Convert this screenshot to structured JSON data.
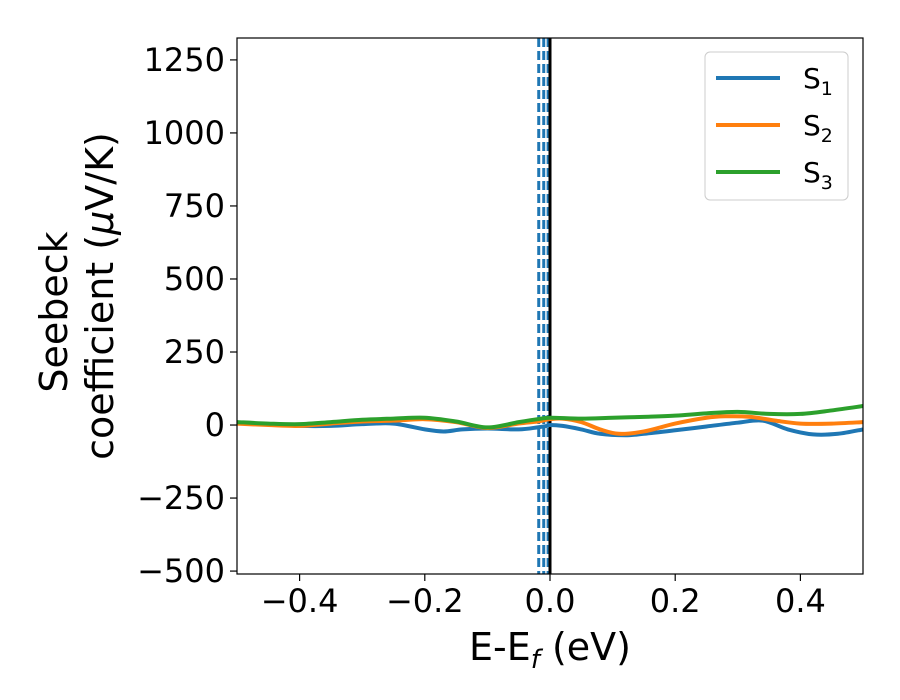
{
  "chart_data": {
    "type": "line",
    "xlabel": {
      "main": "E-E",
      "sub": "f",
      "suffix": " (eV)"
    },
    "ylabel": {
      "line1": "Seebeck",
      "line2": "coefficient  (",
      "mu": "μ",
      "line2_end": "V/K)"
    },
    "xlim": [
      -0.5,
      0.5
    ],
    "ylim": [
      -510,
      1325
    ],
    "x_ticks": [
      -0.4,
      -0.2,
      0.0,
      0.2,
      0.4
    ],
    "x_tick_labels": [
      "−0.4",
      "−0.2",
      "0.0",
      "0.2",
      "0.4"
    ],
    "y_ticks": [
      -500,
      -250,
      0,
      250,
      500,
      750,
      1000,
      1250
    ],
    "y_tick_labels": [
      "−500",
      "−250",
      "0",
      "250",
      "500",
      "750",
      "1000",
      "1250"
    ],
    "grid": false,
    "legend_position": "top-right",
    "legend": [
      {
        "base": "S",
        "sub": "1"
      },
      {
        "base": "S",
        "sub": "2"
      },
      {
        "base": "S",
        "sub": "3"
      }
    ],
    "vertical_lines": [
      {
        "x": -0.018,
        "color": "#1f77b4",
        "style": "dashed"
      },
      {
        "x": -0.01,
        "color": "#1f77b4",
        "style": "dashed"
      },
      {
        "x": -0.003,
        "color": "#1f77b4",
        "style": "dashed"
      },
      {
        "x": 0.0,
        "color": "#000000",
        "style": "solid"
      }
    ],
    "series": [
      {
        "color": "#1f77b4",
        "x": [
          -0.5,
          -0.45,
          -0.4,
          -0.35,
          -0.3,
          -0.25,
          -0.2,
          -0.17,
          -0.14,
          -0.1,
          -0.05,
          -0.02,
          -0.005,
          0.0,
          0.02,
          0.05,
          0.08,
          0.12,
          0.15,
          0.2,
          0.25,
          0.3,
          0.34,
          0.38,
          0.42,
          0.46,
          0.5
        ],
        "y": [
          8,
          3,
          -3,
          -3,
          3,
          5,
          -15,
          -22,
          -15,
          -12,
          -15,
          -8,
          -3,
          0,
          -3,
          -15,
          -30,
          -35,
          -30,
          -18,
          -5,
          8,
          15,
          -15,
          -32,
          -30,
          -15
        ]
      },
      {
        "color": "#ff7f0e",
        "x": [
          -0.5,
          -0.45,
          -0.4,
          -0.35,
          -0.3,
          -0.25,
          -0.2,
          -0.15,
          -0.1,
          -0.05,
          -0.02,
          0.0,
          0.02,
          0.05,
          0.08,
          0.11,
          0.15,
          0.2,
          0.25,
          0.28,
          0.32,
          0.36,
          0.4,
          0.45,
          0.5
        ],
        "y": [
          5,
          0,
          -3,
          5,
          12,
          15,
          20,
          10,
          -10,
          5,
          12,
          20,
          22,
          10,
          -15,
          -30,
          -22,
          5,
          25,
          30,
          28,
          15,
          5,
          5,
          10
        ]
      },
      {
        "color": "#2ca02c",
        "x": [
          -0.5,
          -0.45,
          -0.4,
          -0.35,
          -0.3,
          -0.25,
          -0.2,
          -0.15,
          -0.1,
          -0.05,
          -0.02,
          0.0,
          0.05,
          0.1,
          0.15,
          0.2,
          0.25,
          0.3,
          0.35,
          0.4,
          0.45,
          0.5
        ],
        "y": [
          10,
          5,
          3,
          10,
          18,
          22,
          25,
          12,
          -8,
          10,
          20,
          25,
          22,
          25,
          28,
          32,
          40,
          45,
          38,
          38,
          50,
          65
        ]
      }
    ]
  }
}
